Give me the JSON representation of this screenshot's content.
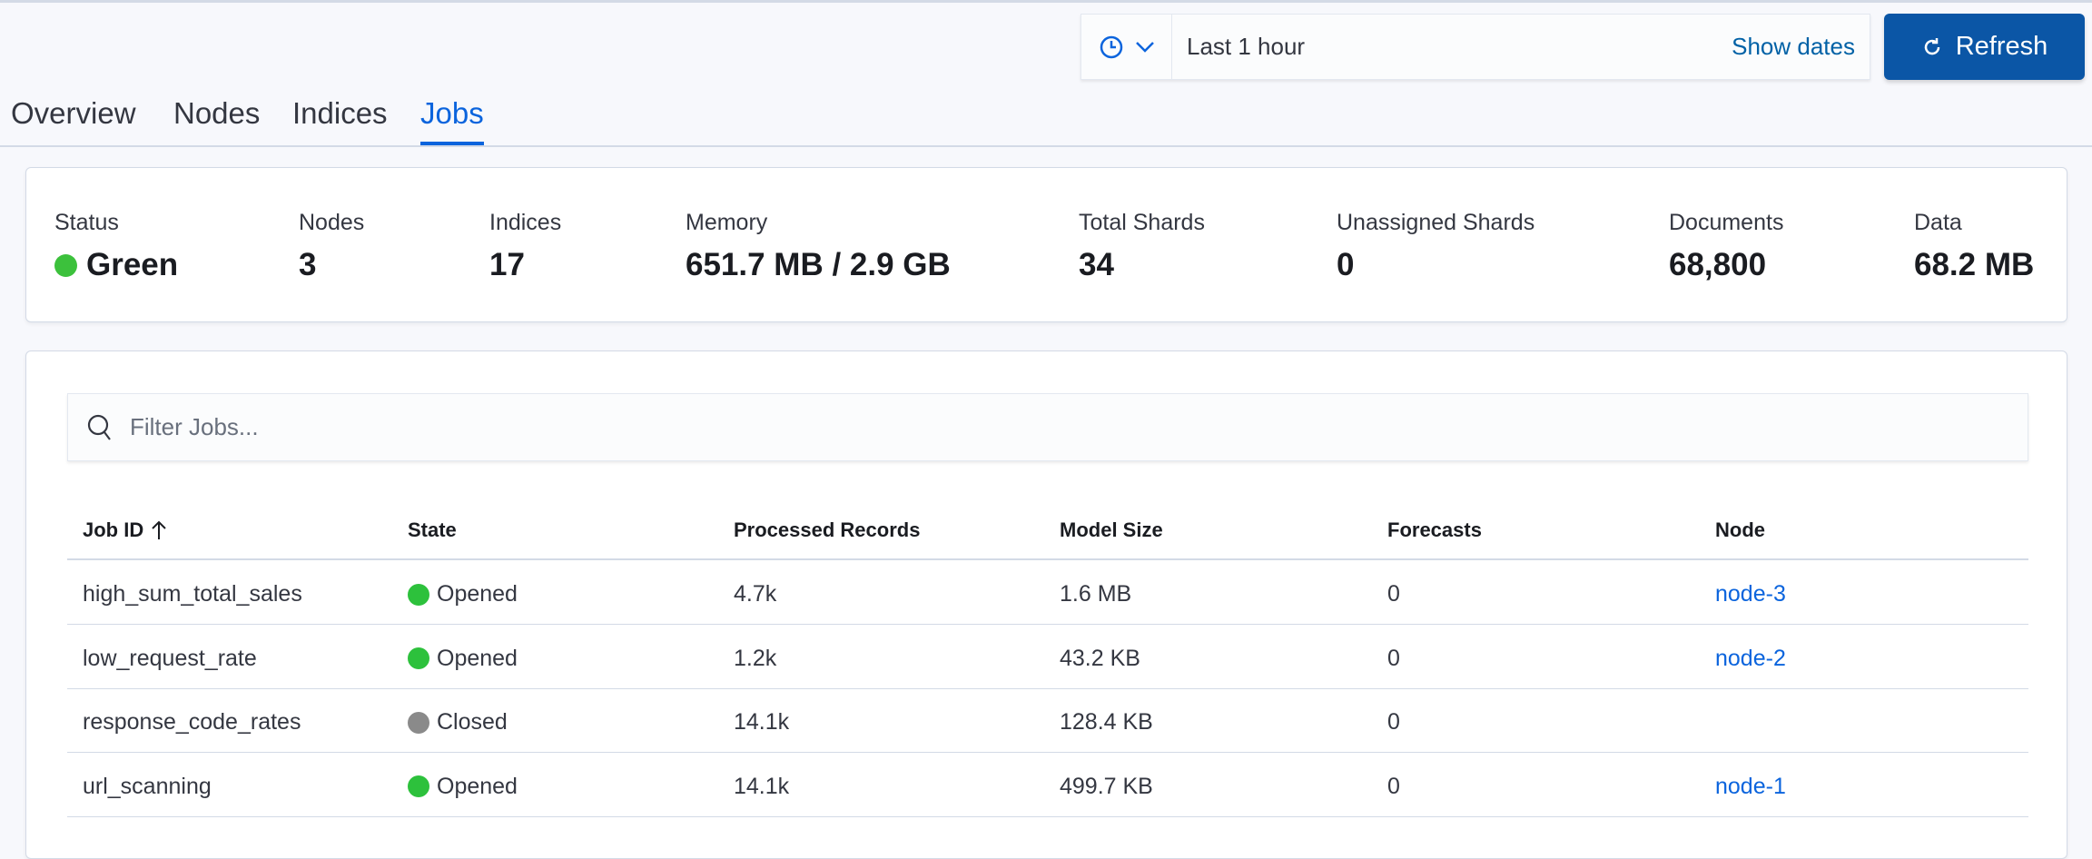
{
  "time_picker": {
    "quick_icon": "clock-icon",
    "value": "Last 1 hour",
    "show_dates": "Show dates"
  },
  "refresh": {
    "label": "Refresh",
    "icon": "refresh-icon"
  },
  "tabs": [
    {
      "label": "Overview"
    },
    {
      "label": "Nodes"
    },
    {
      "label": "Indices"
    },
    {
      "label": "Jobs",
      "active": true
    }
  ],
  "stats": [
    {
      "label": "Status",
      "value": "Green",
      "color": "#3cc13c"
    },
    {
      "label": "Nodes",
      "value": "3"
    },
    {
      "label": "Indices",
      "value": "17"
    },
    {
      "label": "Memory",
      "value": "651.7 MB / 2.9 GB"
    },
    {
      "label": "Total Shards",
      "value": "34"
    },
    {
      "label": "Unassigned Shards",
      "value": "0"
    },
    {
      "label": "Documents",
      "value": "68,800"
    },
    {
      "label": "Data",
      "value": "68.2 MB"
    }
  ],
  "search": {
    "placeholder": "Filter Jobs..."
  },
  "table": {
    "columns": [
      "Job ID",
      "State",
      "Processed Records",
      "Model Size",
      "Forecasts",
      "Node"
    ],
    "sort": {
      "column": "Job ID",
      "direction": "ascending"
    },
    "rows": [
      {
        "job_id": "high_sum_total_sales",
        "state": "Opened",
        "state_color": "#2dc13c",
        "records": "4.7k",
        "model_size": "1.6 MB",
        "forecasts": "0",
        "node": "node-3"
      },
      {
        "job_id": "low_request_rate",
        "state": "Opened",
        "state_color": "#2dc13c",
        "records": "1.2k",
        "model_size": "43.2 KB",
        "forecasts": "0",
        "node": "node-2"
      },
      {
        "job_id": "response_code_rates",
        "state": "Closed",
        "state_color": "#8a8a8a",
        "records": "14.1k",
        "model_size": "128.4 KB",
        "forecasts": "0",
        "node": ""
      },
      {
        "job_id": "url_scanning",
        "state": "Opened",
        "state_color": "#2dc13c",
        "records": "14.1k",
        "model_size": "499.7 KB",
        "forecasts": "0",
        "node": "node-1"
      }
    ]
  }
}
